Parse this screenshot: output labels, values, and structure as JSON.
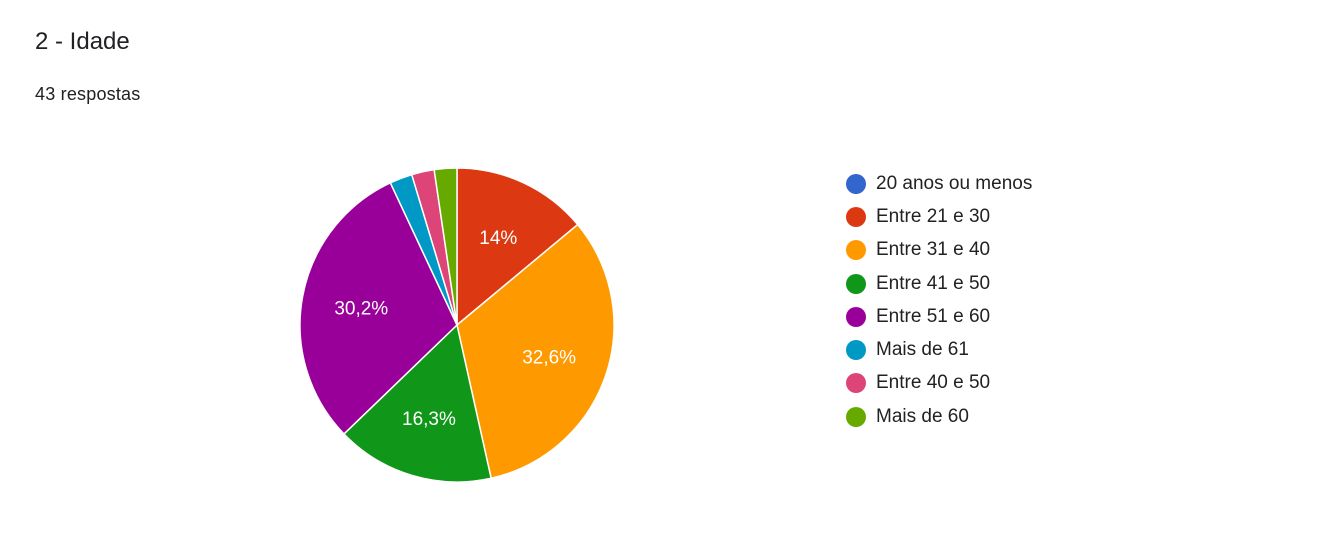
{
  "header": {
    "title": "2 - Idade",
    "responses": "43 respostas"
  },
  "chart_data": {
    "type": "pie",
    "total": 43,
    "start_angle_deg": 90,
    "legend_position": "right",
    "slices": [
      {
        "label": "20 anos ou menos",
        "count": 0,
        "percent_label": "",
        "color": "#3366cc"
      },
      {
        "label": "Entre 21 e 30",
        "count": 6,
        "percent_label": "14%",
        "color": "#dc3912"
      },
      {
        "label": "Entre 31 e 40",
        "count": 14,
        "percent_label": "32,6%",
        "color": "#ff9900"
      },
      {
        "label": "Entre 41 e 50",
        "count": 7,
        "percent_label": "16,3%",
        "color": "#109618"
      },
      {
        "label": "Entre 51 e 60",
        "count": 13,
        "percent_label": "30,2%",
        "color": "#990099"
      },
      {
        "label": "Mais de 61",
        "count": 1,
        "percent_label": "",
        "color": "#0099c6"
      },
      {
        "label": "Entre 40 e 50",
        "count": 1,
        "percent_label": "",
        "color": "#dd4477"
      },
      {
        "label": "Mais de 60",
        "count": 1,
        "percent_label": "",
        "color": "#66aa00"
      }
    ]
  }
}
